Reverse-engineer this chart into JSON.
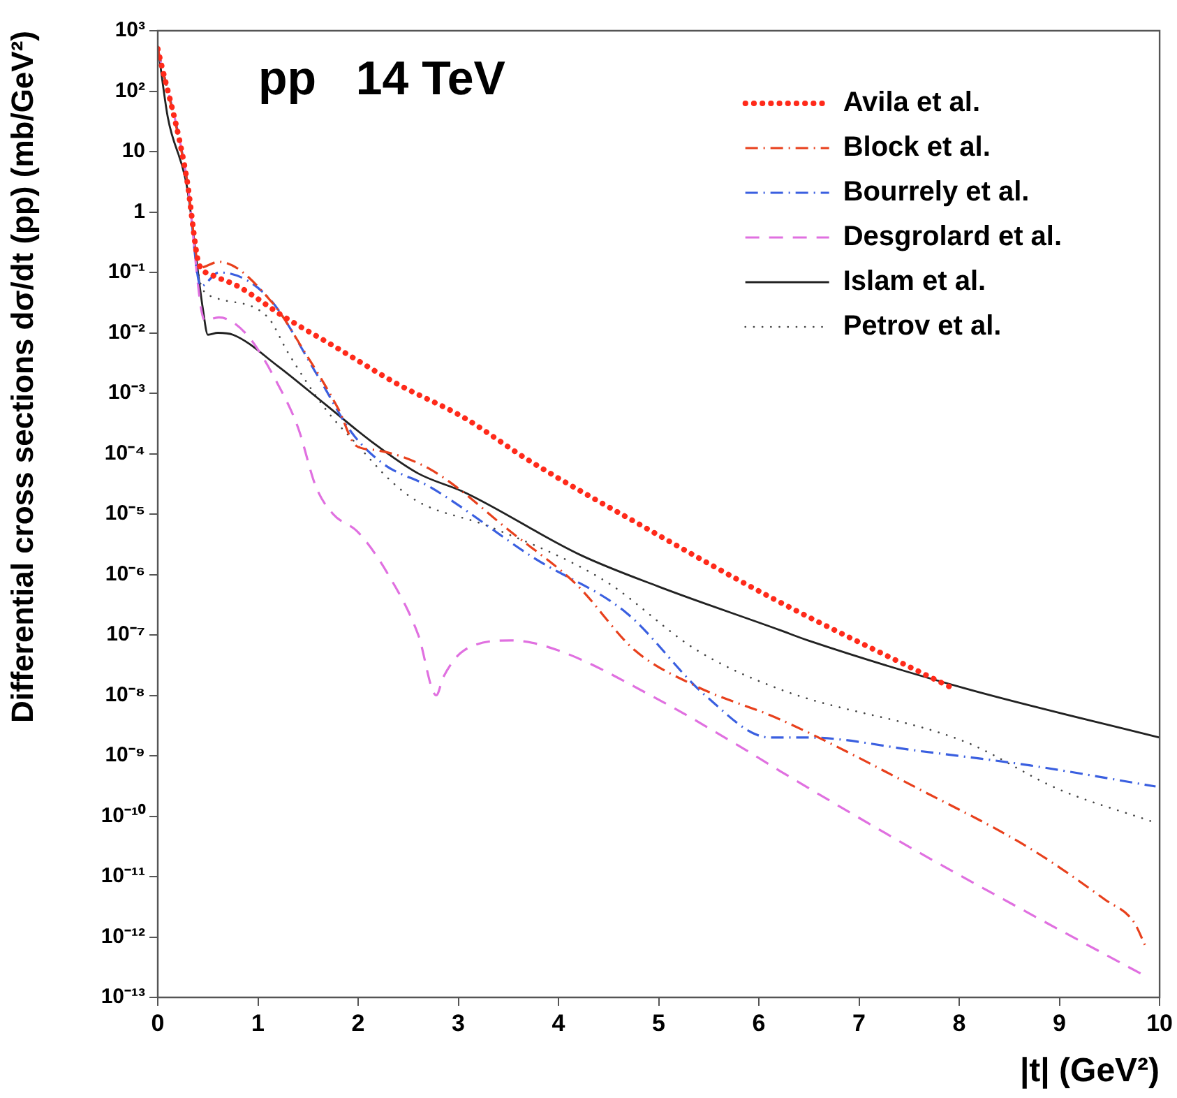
{
  "chart_data": {
    "type": "line",
    "title": "pp   14 TeV",
    "xlabel": "|t| (GeV²)",
    "ylabel": "Differential cross sections dσ/dt (pp) (mb/GeV²)",
    "xlim": [
      0,
      10
    ],
    "xticks": [
      0,
      1,
      2,
      3,
      4,
      5,
      6,
      7,
      8,
      9,
      10
    ],
    "ylim": [
      1e-13,
      1000
    ],
    "log": "y",
    "yticks": [
      {
        "value": 1000,
        "label": "10³"
      },
      {
        "value": 100,
        "label": "10²"
      },
      10,
      1,
      {
        "value": 0.1,
        "label": "10⁻¹"
      },
      {
        "value": 0.01,
        "label": "10⁻²"
      },
      {
        "value": 0.001,
        "label": "10⁻³"
      },
      {
        "value": 0.0001,
        "label": "10⁻⁴"
      },
      {
        "value": 1e-05,
        "label": "10⁻⁵"
      },
      {
        "value": 1e-06,
        "label": "10⁻⁶"
      },
      {
        "value": 1e-07,
        "label": "10⁻⁷"
      },
      {
        "value": 1e-08,
        "label": "10⁻⁸"
      },
      {
        "value": 1e-09,
        "label": "10⁻⁹"
      },
      {
        "value": 1e-10,
        "label": "10⁻¹⁰"
      },
      {
        "value": 1e-11,
        "label": "10⁻¹¹"
      },
      {
        "value": 1e-12,
        "label": "10⁻¹²"
      },
      {
        "value": 1e-13,
        "label": "10⁻¹³"
      }
    ],
    "grid": false,
    "legend": "top right",
    "marker": "none",
    "series": [
      {
        "name": "Avila et al.",
        "color": "#ff2a1a",
        "line_style": "dotted",
        "x": [
          0,
          0.29,
          0.4,
          0.45,
          0.55,
          0.8,
          1.27,
          1.76,
          2.4,
          3.05,
          3.69,
          4.84,
          6.14,
          7.9
        ],
        "values": [
          500,
          3.5,
          0.16,
          0.11,
          0.089,
          0.059,
          0.018,
          0.006,
          0.0014,
          0.0004,
          8e-05,
          6.3e-06,
          4e-07,
          1.4e-08
        ]
      },
      {
        "name": "Block et al.",
        "color": "#e8401c",
        "line_style": "dashdot",
        "x": [
          0,
          0.29,
          0.42,
          0.61,
          1.14,
          1.47,
          1.8,
          1.98,
          2.17,
          2.72,
          3.53,
          4.18,
          4.76,
          5.38,
          6.21,
          7.6,
          8.71,
          9.46,
          9.74,
          9.86
        ],
        "values": [
          500,
          3.5,
          0.12,
          0.15,
          0.032,
          0.0047,
          0.00056,
          0.000135,
          0.000115,
          5.5e-05,
          5e-06,
          6.8e-07,
          5.6e-08,
          1.4e-08,
          4e-09,
          2.8e-10,
          2.9e-11,
          4.1e-12,
          1.8e-12,
          7e-13
        ]
      },
      {
        "name": "Bourrely et al.",
        "color": "#3a5fe0",
        "line_style": "dashdot",
        "x": [
          0,
          0.29,
          0.43,
          0.61,
          1.1,
          1.6,
          1.93,
          2.25,
          2.72,
          3.75,
          4.68,
          5.47,
          6.11,
          6.49,
          7.6,
          8.71,
          9.96
        ],
        "values": [
          500,
          3.5,
          0.059,
          0.1,
          0.039,
          0.0019,
          0.00023,
          6.8e-05,
          2.8e-05,
          1.9e-06,
          2.3e-07,
          9.8e-09,
          2e-09,
          2e-09,
          1.2e-09,
          6.9e-10,
          3.1e-10
        ]
      },
      {
        "name": "Desgrolard et al.",
        "color": "#e070e0",
        "line_style": "dashed",
        "x": [
          0,
          0.29,
          0.47,
          0.61,
          0.89,
          1.21,
          1.4,
          1.58,
          1.75,
          2.0,
          2.3,
          2.6,
          2.78,
          2.85,
          3.06,
          3.53,
          3.99,
          4.92,
          5.85,
          6.21,
          7.6,
          8.71,
          9.87
        ],
        "values": [
          500,
          3.5,
          0.016,
          0.018,
          0.0093,
          0.0013,
          0.00027,
          2.8e-05,
          1e-05,
          5e-06,
          1e-06,
          1e-07,
          1e-08,
          2e-08,
          5.6e-08,
          8.1e-08,
          5.6e-08,
          1e-08,
          1.3e-09,
          5.6e-10,
          2.5e-11,
          2.4e-12,
          2.2e-13
        ]
      },
      {
        "name": "Islam et al.",
        "color": "#222222",
        "line_style": "solid",
        "x": [
          0,
          0.1,
          0.29,
          0.45,
          0.5,
          0.6,
          0.75,
          1.2,
          1.67,
          2.13,
          2.6,
          3.06,
          4.22,
          5.0,
          6.21,
          6.49,
          8.06,
          10
        ],
        "values": [
          560,
          37,
          2.7,
          0.025,
          0.0093,
          0.01,
          0.0093,
          0.0028,
          0.00066,
          0.00016,
          4.7e-05,
          2.3e-05,
          2.1e-06,
          6.3e-07,
          1.2e-07,
          8.1e-08,
          1.3e-08,
          2e-09
        ]
      },
      {
        "name": "Petrov et al.",
        "color": "#444444",
        "line_style": "dotted",
        "x": [
          0,
          0.29,
          0.43,
          0.56,
          1.1,
          1.3,
          1.67,
          2.0,
          2.33,
          2.6,
          3.3,
          4.46,
          5.38,
          6.21,
          8.06,
          8.99,
          9.91
        ],
        "values": [
          500,
          3.5,
          0.063,
          0.039,
          0.018,
          0.0047,
          0.00056,
          0.000135,
          3.5e-05,
          1.6e-05,
          6.3e-06,
          7.9e-07,
          5.6e-08,
          1.26e-08,
          1.7e-09,
          2.8e-10,
          8.3e-11
        ]
      }
    ]
  }
}
